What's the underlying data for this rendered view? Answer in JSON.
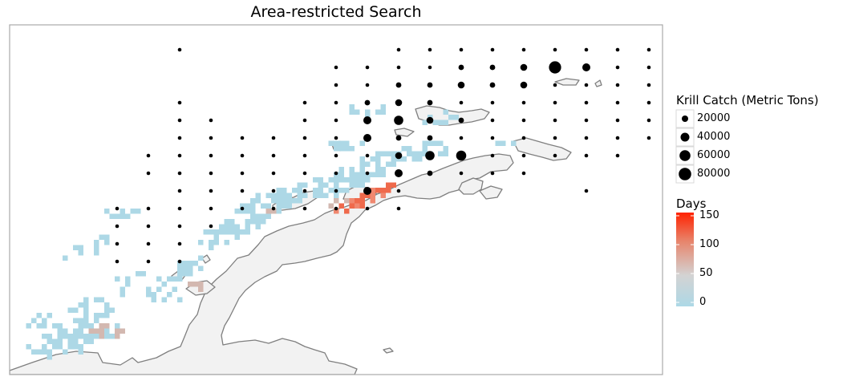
{
  "title": "Area-restricted Search",
  "size_legend": {
    "title": "Krill Catch (Metric Tons)",
    "breaks": [
      20000,
      40000,
      60000,
      80000
    ],
    "labels": [
      "20000",
      "40000",
      "60000",
      "80000"
    ]
  },
  "color_legend": {
    "title": "Days",
    "labels": [
      "150",
      "100",
      "50",
      "0"
    ],
    "values": [
      150,
      100,
      50,
      0
    ],
    "range": [
      0,
      160
    ],
    "gradient": [
      "#add8e6",
      "#d3d3d3",
      "#e8836a",
      "#ff2200"
    ]
  },
  "colors": {
    "land_fill": "#f2f2f2",
    "coastline": "#7f7f7f",
    "panel_border": "#a9a9a9",
    "points": "#000000",
    "low_days": "#add8e6",
    "mid_days": "#d3b8b0",
    "high_days": "#ef6a4c"
  },
  "catch_points": {
    "columns": [
      146,
      185,
      224,
      263,
      302,
      341,
      380,
      419,
      458,
      497,
      536,
      575,
      614,
      653,
      692,
      731,
      770,
      809
    ],
    "rows": [
      62,
      84,
      106,
      128,
      150,
      172,
      194,
      216,
      238,
      260,
      282,
      304,
      326
    ],
    "note_units": "metric tons",
    "grid": [
      [
        0,
        0,
        1,
        0,
        0,
        0,
        0,
        0,
        0,
        1,
        1,
        1,
        1,
        1,
        1,
        1,
        1,
        1
      ],
      [
        0,
        0,
        0,
        0,
        0,
        0,
        0,
        1,
        1,
        1,
        1,
        2,
        2,
        3,
        8,
        4,
        1,
        1
      ],
      [
        0,
        0,
        0,
        0,
        0,
        0,
        0,
        1,
        1,
        2,
        2,
        3,
        2,
        3,
        1,
        1,
        1,
        1
      ],
      [
        0,
        0,
        1,
        0,
        0,
        0,
        1,
        1,
        2,
        3,
        2,
        1,
        1,
        1,
        1,
        1,
        1,
        1
      ],
      [
        0,
        0,
        1,
        1,
        0,
        0,
        1,
        1,
        4,
        5,
        3,
        2,
        1,
        1,
        1,
        1,
        1,
        1
      ],
      [
        0,
        0,
        1,
        1,
        1,
        1,
        1,
        1,
        4,
        2,
        2,
        1,
        1,
        1,
        1,
        1,
        1,
        1
      ],
      [
        0,
        1,
        1,
        1,
        1,
        1,
        1,
        1,
        1,
        3,
        5,
        6,
        1,
        1,
        1,
        1,
        1,
        0
      ],
      [
        0,
        1,
        1,
        1,
        1,
        1,
        1,
        1,
        1,
        4,
        2,
        1,
        1,
        1,
        0,
        0,
        0,
        0
      ],
      [
        0,
        0,
        1,
        1,
        1,
        1,
        1,
        1,
        4,
        1,
        0,
        0,
        0,
        0,
        0,
        1,
        0,
        0
      ],
      [
        1,
        1,
        1,
        1,
        1,
        1,
        1,
        1,
        1,
        1,
        0,
        0,
        0,
        0,
        0,
        0,
        0,
        0
      ],
      [
        1,
        1,
        1,
        1,
        0,
        0,
        0,
        0,
        0,
        0,
        0,
        0,
        0,
        0,
        0,
        0,
        0,
        0
      ],
      [
        1,
        1,
        1,
        0,
        0,
        0,
        0,
        0,
        0,
        0,
        0,
        0,
        0,
        0,
        0,
        0,
        0,
        0
      ],
      [
        1,
        1,
        1,
        0,
        0,
        0,
        0,
        0,
        0,
        0,
        0,
        0,
        0,
        0,
        0,
        0,
        0,
        0
      ]
    ]
  }
}
